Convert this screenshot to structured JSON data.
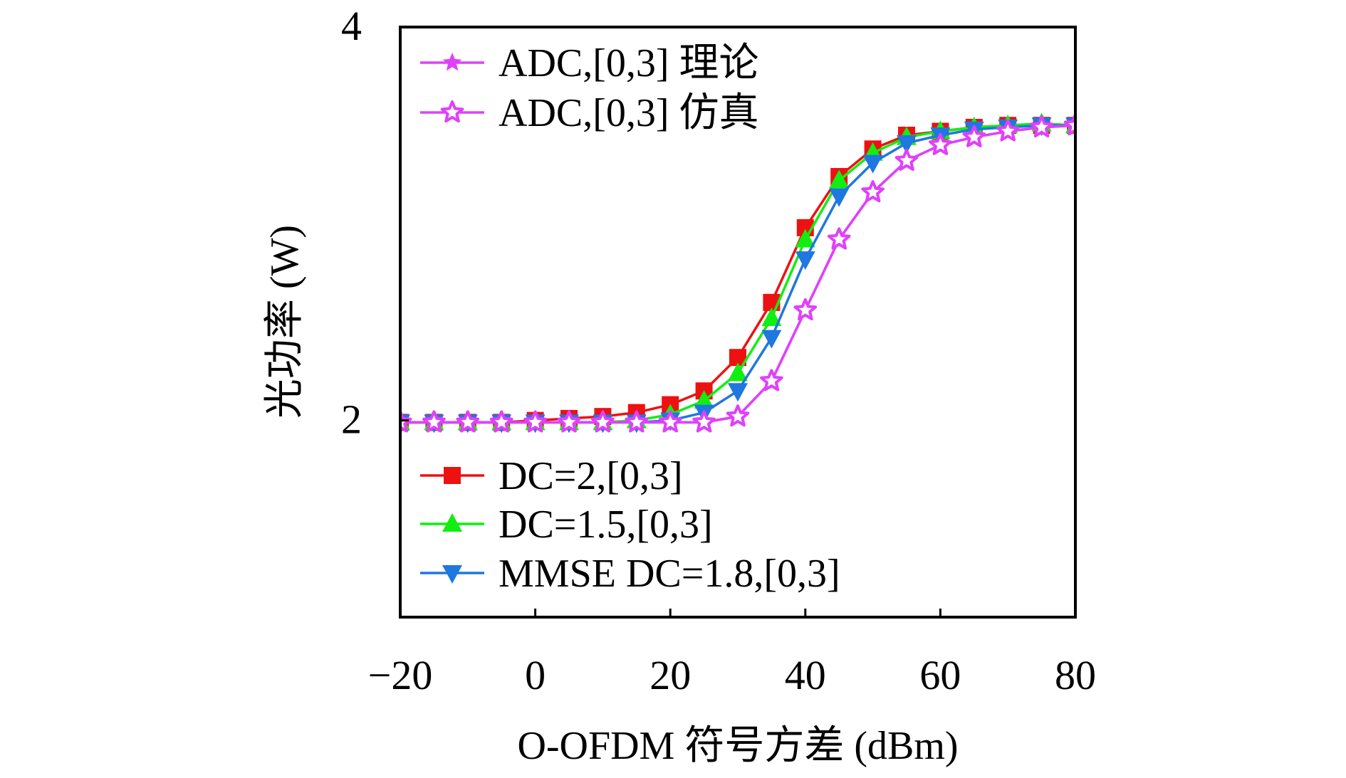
{
  "chart_data": {
    "type": "line",
    "xlabel": "O-OFDM 符号方差 (dBm)",
    "ylabel": "光功率 (W)",
    "xlim": [
      -20,
      80
    ],
    "ylim": [
      1,
      4
    ],
    "xticks": [
      "−20",
      "0",
      "20",
      "40",
      "60",
      "80"
    ],
    "yticks": [
      "2",
      "4"
    ],
    "grid": false,
    "legend_top": "top-left",
    "legend_bottom": "bottom-left",
    "x": [
      -20,
      -15,
      -10,
      -5,
      0,
      5,
      10,
      15,
      20,
      25,
      30,
      35,
      40,
      45,
      50,
      55,
      60,
      65,
      70,
      75,
      80
    ],
    "series": [
      {
        "name": "ADC,[0,3] 理论",
        "color": "#e040fb",
        "marker": "star-filled",
        "values": [
          1.99,
          1.99,
          1.99,
          1.99,
          1.99,
          1.99,
          1.99,
          1.99,
          1.99,
          1.99,
          2.02,
          2.2,
          2.56,
          2.92,
          3.16,
          3.32,
          3.4,
          3.44,
          3.47,
          3.49,
          3.5
        ]
      },
      {
        "name": "ADC,[0,3] 仿真",
        "color": "#e040fb",
        "marker": "star-open",
        "values": [
          1.99,
          1.99,
          1.99,
          1.99,
          1.99,
          1.99,
          1.99,
          1.99,
          1.99,
          1.99,
          2.02,
          2.2,
          2.56,
          2.92,
          3.16,
          3.32,
          3.4,
          3.44,
          3.47,
          3.49,
          3.5
        ]
      },
      {
        "name": "DC=2,[0,3]",
        "color": "#ee1111",
        "marker": "square",
        "values": [
          1.99,
          1.99,
          1.99,
          1.99,
          2.0,
          2.01,
          2.02,
          2.04,
          2.08,
          2.15,
          2.32,
          2.6,
          2.98,
          3.24,
          3.38,
          3.45,
          3.47,
          3.49,
          3.5,
          3.5,
          3.5
        ]
      },
      {
        "name": "DC=1.5,[0,3]",
        "color": "#11ee11",
        "marker": "triangle-up",
        "values": [
          1.99,
          1.99,
          1.99,
          1.99,
          1.99,
          1.99,
          1.99,
          2.0,
          2.03,
          2.1,
          2.24,
          2.52,
          2.92,
          3.22,
          3.36,
          3.44,
          3.47,
          3.49,
          3.5,
          3.51,
          3.5
        ]
      },
      {
        "name": "MMSE DC=1.8,[0,3]",
        "color": "#1f77e0",
        "marker": "triangle-down",
        "values": [
          1.99,
          1.99,
          1.99,
          1.99,
          1.99,
          1.99,
          1.99,
          1.99,
          2.0,
          2.04,
          2.15,
          2.42,
          2.82,
          3.14,
          3.31,
          3.41,
          3.45,
          3.48,
          3.49,
          3.5,
          3.5
        ]
      }
    ]
  }
}
